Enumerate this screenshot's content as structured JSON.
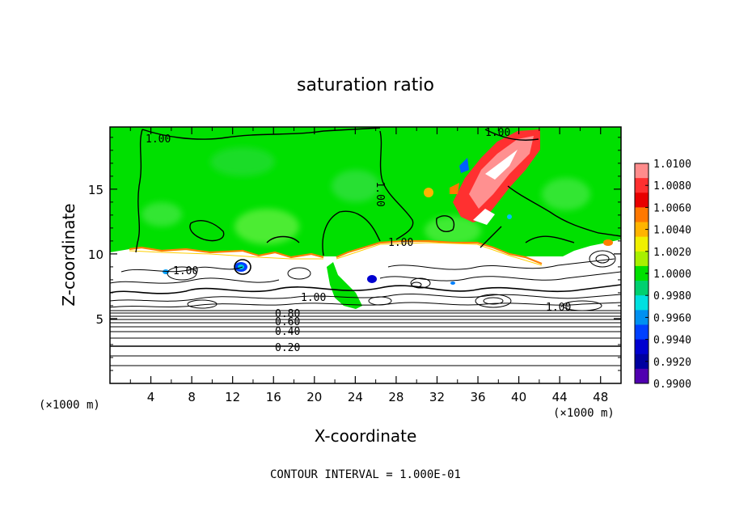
{
  "chart_data": {
    "type": "heatmap",
    "title": "saturation ratio",
    "xlabel": "X-coordinate",
    "ylabel": "Z-coordinate",
    "x_unit": "(×1000 m)",
    "x_unit_right": "(×1000 m)",
    "x_ticks": [
      "4",
      "8",
      "12",
      "16",
      "20",
      "24",
      "28",
      "32",
      "36",
      "40",
      "44",
      "48"
    ],
    "y_ticks": [
      "5",
      "10",
      "15"
    ],
    "xlim": [
      0,
      50
    ],
    "ylim": [
      0,
      19.8
    ],
    "contour_note": "CONTOUR INTERVAL = 1.000E-01",
    "contour_labels": [
      "1.00",
      "1.00",
      "1.00",
      "1.00",
      "1.00",
      "1.00",
      "1.00",
      "0.80",
      "0.60",
      "0.40",
      "0.20"
    ],
    "colorbar": {
      "labels": [
        "1.0100",
        "1.0080",
        "1.0060",
        "1.0040",
        "1.0020",
        "1.0000",
        "0.9980",
        "0.9960",
        "0.9940",
        "0.9920",
        "0.9900"
      ],
      "colors": [
        "#ff8c8c",
        "#ff3030",
        "#e80000",
        "#ff7800",
        "#ffb400",
        "#f0f000",
        "#a8f000",
        "#00e000",
        "#00d070",
        "#00e0e0",
        "#0090f0",
        "#0040ff",
        "#0000d0",
        "#0000a0",
        "#5000b0"
      ]
    },
    "regions": {
      "upper_green_top_km": 19.8,
      "upper_green_bottom_km": 10.4,
      "cloud_layer_bottom_km": 5.5
    }
  }
}
